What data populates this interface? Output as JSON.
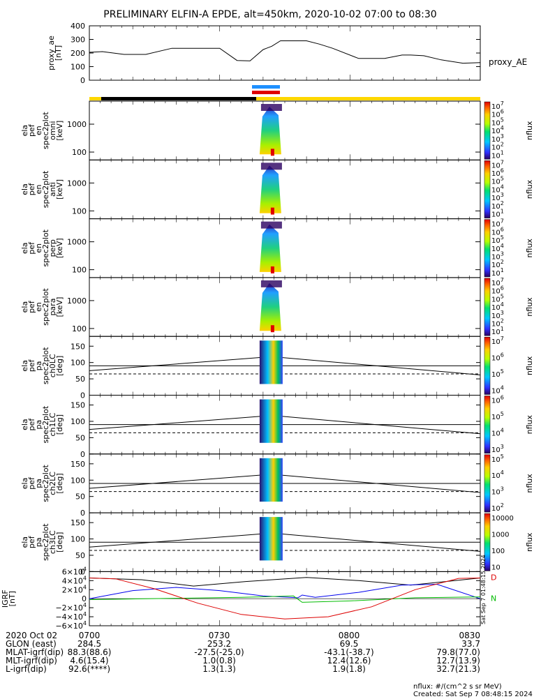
{
  "chart_data": {
    "type": "heatmap",
    "title": "PRELIMINARY ELFIN-A EPDE, alt=450km, 2020-10-02 07:00 to 08:30",
    "x_time_ticks": [
      "0700",
      "0730",
      "0800",
      "0830"
    ],
    "ae_panel": {
      "ylabel": [
        "proxy_ae",
        "[nT]"
      ],
      "yticks": [
        "400",
        "300",
        "200",
        "100",
        "0"
      ],
      "ylim": [
        0,
        400
      ],
      "legend": "proxy_AE",
      "series": {
        "name": "proxy_AE",
        "minutes": [
          0,
          3,
          8,
          13,
          19,
          24,
          30,
          34,
          37,
          40,
          42,
          44,
          47,
          50,
          53,
          56,
          62,
          68,
          72,
          74,
          77,
          81,
          86,
          90
        ],
        "values": [
          205,
          210,
          190,
          190,
          235,
          235,
          235,
          145,
          142,
          225,
          250,
          290,
          290,
          290,
          265,
          235,
          160,
          160,
          185,
          185,
          180,
          150,
          125,
          130
        ]
      }
    },
    "spectrogram_panels": [
      {
        "ylabel": [
          "ela",
          "pef",
          "en",
          "spec2plot",
          "omni",
          "[keV]"
        ],
        "yticks": [
          "1000",
          "100"
        ],
        "cbar_label": "nflux",
        "cbar_ticks": [
          "10^7",
          "10^6",
          "10^5",
          "10^4",
          "10^3",
          "10^2",
          "10^1"
        ]
      },
      {
        "ylabel": [
          "ela",
          "pef",
          "en",
          "spec2plot",
          "anti",
          "[keV]"
        ],
        "yticks": [
          "1000",
          "100"
        ],
        "cbar_label": "nflux",
        "cbar_ticks": [
          "10^7",
          "10^6",
          "10^5",
          "10^4",
          "10^3",
          "10^2",
          "10^1"
        ]
      },
      {
        "ylabel": [
          "ela",
          "pef",
          "en",
          "spec2plot",
          "perp",
          "[keV]"
        ],
        "yticks": [
          "1000",
          "100"
        ],
        "cbar_label": "nflux",
        "cbar_ticks": [
          "10^7",
          "10^6",
          "10^5",
          "10^4",
          "10^3",
          "10^2",
          "10^1"
        ]
      },
      {
        "ylabel": [
          "ela",
          "pef",
          "en",
          "spec2plot",
          "para",
          "[keV]"
        ],
        "yticks": [
          "1000",
          "100"
        ],
        "cbar_label": "nflux",
        "cbar_ticks": [
          "10^7",
          "10^6",
          "10^5",
          "10^4",
          "10^3",
          "10^2",
          "10^1"
        ]
      },
      {
        "ylabel": [
          "ela",
          "pef",
          "pa",
          "spec2plot",
          "ch0LC",
          "[deg]"
        ],
        "yticks": [
          "150",
          "100",
          "50",
          "0"
        ],
        "cbar_label": "nflux",
        "cbar_ticks": [
          "10^7",
          "10^6",
          "10^5",
          "10^4"
        ]
      },
      {
        "ylabel": [
          "ela",
          "pef",
          "pa",
          "spec2plot",
          "ch1LC",
          "[deg]"
        ],
        "yticks": [
          "150",
          "100",
          "50",
          "0"
        ],
        "cbar_label": "nflux",
        "cbar_ticks": [
          "10^6",
          "10^5",
          "10^4",
          "10^3"
        ]
      },
      {
        "ylabel": [
          "ela",
          "pef",
          "pa",
          "spec2plot",
          "ch2LC",
          "[deg]"
        ],
        "yticks": [
          "150",
          "100",
          "50",
          "0"
        ],
        "cbar_label": "nflux",
        "cbar_ticks": [
          "10^5",
          "10^4",
          "10^3",
          "10^2"
        ]
      },
      {
        "ylabel": [
          "ela",
          "pef",
          "pa",
          "spec2plot",
          "ch3LC",
          "[deg]"
        ],
        "yticks": [
          "150",
          "100",
          "50",
          "0"
        ],
        "cbar_label": "nflux",
        "cbar_ticks": [
          "10000",
          "1000",
          "100",
          "10"
        ]
      }
    ],
    "igrf_panel": {
      "ylabel": [
        "IGRF",
        "[nT]"
      ],
      "yticks": [
        "6×10^4",
        "4×10^4",
        "2×10^4",
        "0",
        "−2×10^4",
        "−4×10^4",
        "−6×10^4"
      ],
      "ylim": [
        -60000,
        60000
      ],
      "legend": [
        "D",
        "N"
      ],
      "side_note": "Sat Sep 7 01:48:15 2024",
      "series": [
        {
          "color": "#000000",
          "minutes": [
            0,
            12,
            24,
            36,
            50,
            62,
            74,
            90
          ],
          "values": [
            46000,
            42000,
            28000,
            38000,
            47000,
            40000,
            30000,
            46000
          ]
        },
        {
          "color": "#0000ee",
          "minutes": [
            0,
            10,
            20,
            30,
            40,
            48,
            49,
            52,
            62,
            72,
            80,
            90
          ],
          "values": [
            0,
            18000,
            25000,
            18000,
            6000,
            2000,
            8000,
            3000,
            14000,
            30000,
            32000,
            0
          ]
        },
        {
          "color": "#00bb00",
          "minutes": [
            0,
            20,
            35,
            47,
            49,
            60,
            75,
            90
          ],
          "values": [
            -2000,
            1000,
            3000,
            6000,
            -8000,
            -5000,
            2000,
            4000
          ]
        },
        {
          "color": "#dd0000",
          "minutes": [
            0,
            6,
            15,
            25,
            35,
            45,
            55,
            65,
            75,
            85,
            90
          ],
          "values": [
            46000,
            44000,
            22000,
            -10000,
            -35000,
            -45000,
            -40000,
            -18000,
            20000,
            45000,
            46000
          ]
        }
      ]
    },
    "pitch_lines": {
      "upper_solid": 90,
      "dashed": 65,
      "lower_solid": 75
    },
    "mode_bar_colors": {
      "black": "#000000",
      "yellow": "#ffd700",
      "blue": "#1e90ff",
      "red": "#e00000"
    }
  },
  "footer": {
    "rows": [
      {
        "label": "2020 Oct 02",
        "values": [
          "0700",
          "0730",
          "0800",
          "0830"
        ]
      },
      {
        "label": "GLON (east)",
        "values": [
          "284.5",
          "253.2",
          "69.5",
          "33.7"
        ]
      },
      {
        "label": "MLAT-igrf(dip)",
        "values": [
          "88.3(88.6)",
          "-27.5(-25.0)",
          "-43.1(-38.7)",
          "79.8(77.0)"
        ]
      },
      {
        "label": "MLT-igrf(dip)",
        "values": [
          "4.6(15.4)",
          "1.0(0.8)",
          "12.4(12.6)",
          "12.7(13.9)"
        ]
      },
      {
        "label": "L-igrf(dip)",
        "values": [
          "92.6(****)",
          "1.3(1.3)",
          "1.9(1.8)",
          "32.7(21.3)"
        ]
      }
    ],
    "nflux_unit": "nflux: #/(cm^2 s sr MeV)",
    "created": "Created: Sat Sep  7 08:48:15 2024"
  }
}
